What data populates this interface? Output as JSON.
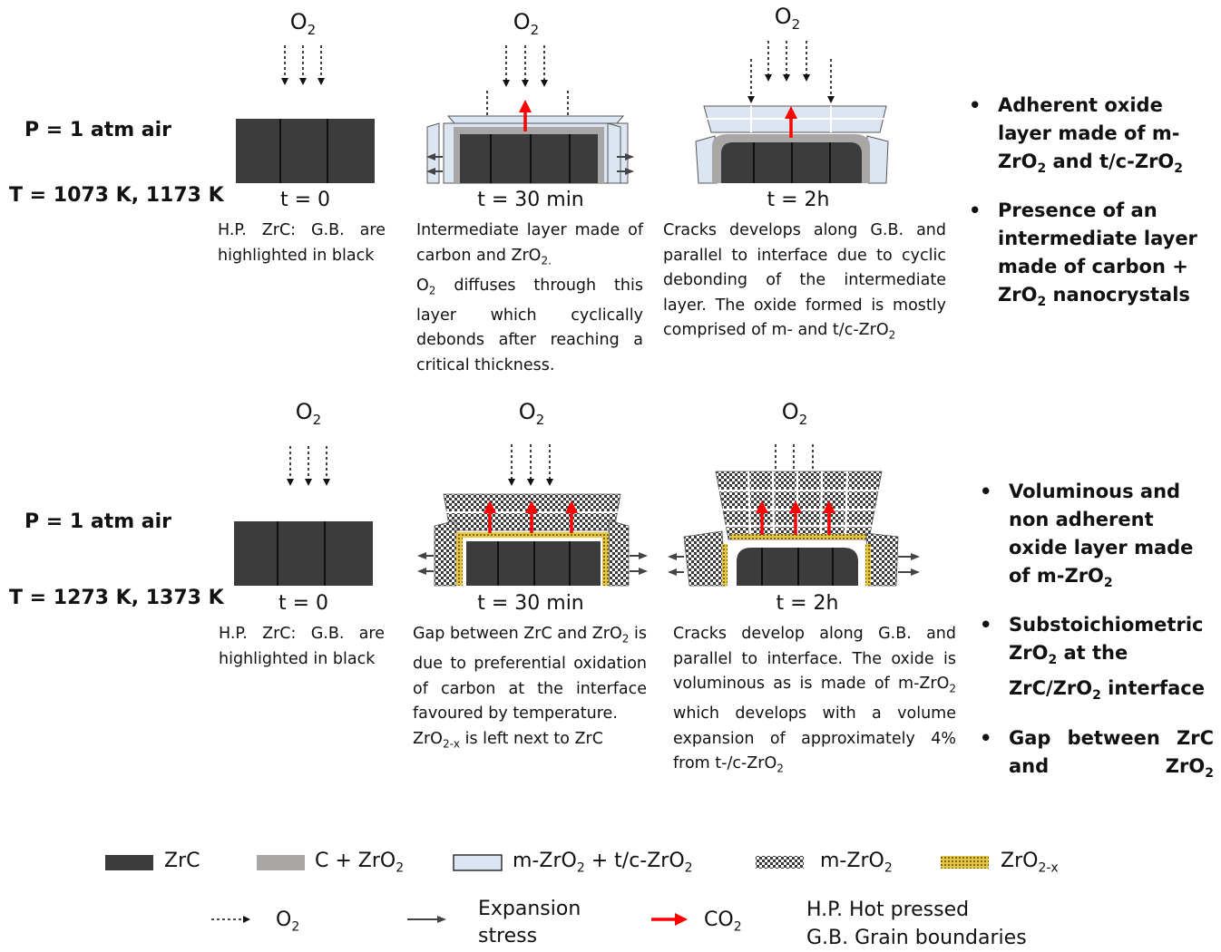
{
  "colors": {
    "zrc": "#3c3c3c",
    "c_zro2": "#a9a6a6",
    "m_t_zro2": "#dce6f2",
    "co2_arrow": "#ff0000"
  },
  "o2_label": {
    "main": "O",
    "sub": "2"
  },
  "row1": {
    "pressure": "P = 1 atm air",
    "temperature": "T = 1073 K, 1173 K",
    "t0": "t = 0",
    "t30": "t = 30 min",
    "t2h": "t = 2h",
    "desc_t0": "H.P. ZrC: G.B. are highlighted in black",
    "desc_t30_line1_a": "Intermediate layer made of carbon and ZrO",
    "desc_t30_line1_sub": "2.",
    "desc_t30_line2_a": "O",
    "desc_t30_line2_sub": "2",
    "desc_t30_line2_b": " diffuses through this layer which cyclically debonds after reaching a critical thickness.",
    "desc_t2h_a": "Cracks develops along G.B. and parallel to interface due to cyclic debonding of the intermediate layer. The oxide formed is mostly comprised of m- and t/c-ZrO",
    "desc_t2h_sub": "2",
    "bullet1_a": "Adherent oxide layer made of m-ZrO",
    "bullet1_sub1": "2",
    "bullet1_b": " and t/c-ZrO",
    "bullet1_sub2": "2",
    "bullet2_a": "Presence of an intermediate layer made of carbon + ZrO",
    "bullet2_sub": "2",
    "bullet2_b": " nanocrystals"
  },
  "row2": {
    "pressure": "P = 1 atm air",
    "temperature": "T = 1273 K, 1373 K",
    "t0": "t = 0",
    "t30": "t = 30 min",
    "t2h": "t = 2h",
    "desc_t0": "H.P. ZrC: G.B. are highlighted in black",
    "desc_t30_a": "Gap between ZrC and ZrO",
    "desc_t30_sub": "2",
    "desc_t30_b": " is due to preferential oxidation of carbon at the interface favoured by temperature.",
    "desc_t30_c": "ZrO",
    "desc_t30_c_sub": "2-x",
    "desc_t30_d": " is left next to ZrC",
    "desc_t2h_a": "Cracks develop along G.B. and parallel to interface. The oxide is voluminous as is made of m-ZrO",
    "desc_t2h_sub1": "2",
    "desc_t2h_b": " which develops with a volume expansion of approximately 4% from t-/c-ZrO",
    "desc_t2h_sub2": "2",
    "bullet1_a": "Voluminous and non adherent oxide layer made of m-ZrO",
    "bullet1_sub": "2",
    "bullet2_a": "Substoichiometric ZrO",
    "bullet2_sub1": "2",
    "bullet2_b": " at the  ZrC/ZrO",
    "bullet2_sub2": "2",
    "bullet2_c": " interface",
    "bullet3_a": "Gap between ZrC and ZrO",
    "bullet3_sub": "2"
  },
  "legend": {
    "zrc": "ZrC",
    "c_zro2_a": "C + ZrO",
    "c_zro2_sub": "2",
    "m_t_a": "m-ZrO",
    "m_t_sub1": "2",
    "m_t_b": " + t/c-ZrO",
    "m_t_sub2": "2",
    "m_zro2_a": "m-ZrO",
    "m_zro2_sub": "2",
    "zro2x_a": "ZrO",
    "zro2x_sub": "2-x",
    "o2_a": "O",
    "o2_sub": "2",
    "expansion_line1": "Expansion",
    "expansion_line2": "stress",
    "co2_a": "CO",
    "co2_sub": "2",
    "hp": "H.P. Hot pressed",
    "gb": "G.B. Grain boundaries"
  }
}
